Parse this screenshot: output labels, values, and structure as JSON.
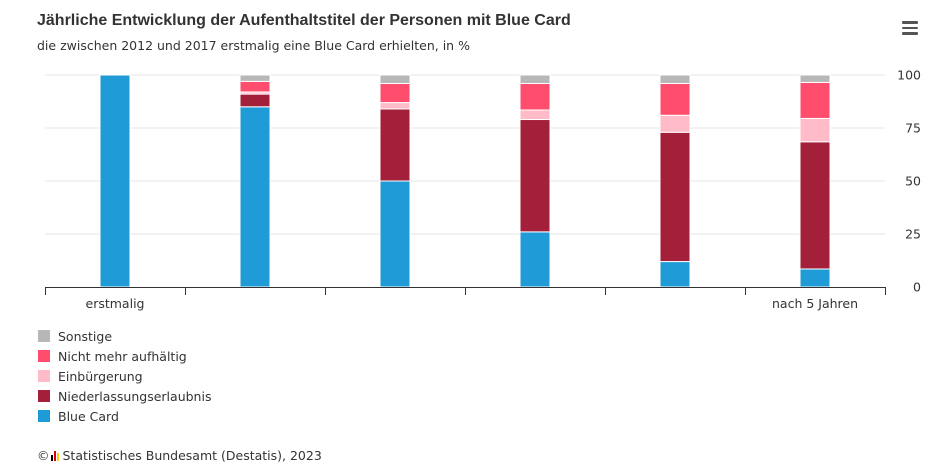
{
  "title": "Jährliche Entwicklung der Aufenthaltstitel der Personen mit Blue Card",
  "subtitle": "die zwischen 2012 und 2017 erstmalig eine Blue Card erhielten, in %",
  "menu_icon": "hamburger-menu-icon",
  "credits": {
    "symbol": "©",
    "logo_icon": "destatis-logo-icon",
    "text": "Statistisches Bundesamt (Destatis), 2023"
  },
  "chart_data": {
    "type": "bar",
    "stacked": true,
    "categories": [
      "erstmalig",
      "",
      "",
      "",
      "",
      "nach 5 Jahren"
    ],
    "ylim": [
      0,
      100
    ],
    "yticks": [
      0,
      25,
      50,
      75,
      100
    ],
    "y_axis_position": "right",
    "grid": true,
    "legend_position": "bottom-left",
    "series": [
      {
        "name": "Blue Card",
        "color": "#1f9bd7",
        "values": [
          100,
          85,
          50,
          26,
          12,
          8.5
        ]
      },
      {
        "name": "Niederlassungserlaubnis",
        "color": "#a31f3a",
        "values": [
          0,
          6,
          34,
          53,
          61,
          60
        ]
      },
      {
        "name": "Einbürgerung",
        "color": "#ffbcc8",
        "values": [
          0,
          1,
          3,
          4.5,
          8,
          11
        ]
      },
      {
        "name": "Nicht mehr aufhältig",
        "color": "#ff4d6d",
        "values": [
          0,
          5,
          9,
          12.5,
          15,
          17
        ]
      },
      {
        "name": "Sonstige",
        "color": "#b7b7b7",
        "values": [
          0,
          3,
          4,
          4,
          4,
          3.5
        ]
      }
    ]
  }
}
